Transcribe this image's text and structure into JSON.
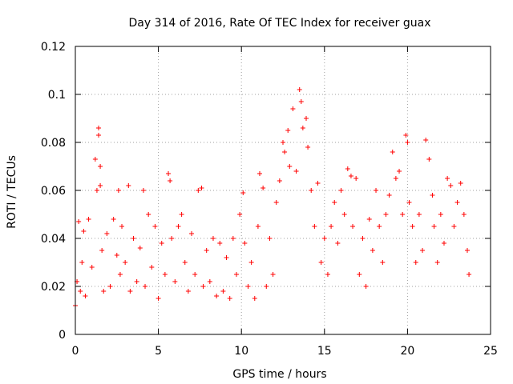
{
  "chart_data": {
    "type": "scatter",
    "title": "Day 314 of 2016, Rate Of TEC Index for receiver guax",
    "xlabel": "GPS time / hours",
    "ylabel": "ROTI / TECUs",
    "xlim": [
      0,
      25
    ],
    "ylim": [
      0,
      0.12
    ],
    "x_ticks": [
      0,
      5,
      10,
      15,
      20,
      25
    ],
    "x_tick_labels": [
      "0",
      "5",
      "10",
      "15",
      "20",
      "25"
    ],
    "y_ticks": [
      0,
      0.02,
      0.04,
      0.06,
      0.08,
      0.1,
      0.12
    ],
    "y_tick_labels": [
      "0",
      "0.02",
      "0.04",
      "0.06",
      "0.08",
      "0.1",
      "0.12"
    ],
    "grid": true,
    "legend": "none",
    "marker": "plus",
    "color": "#ff0000",
    "series": [
      {
        "x": [
          0.0,
          0.1,
          0.2,
          0.3,
          0.4,
          0.5,
          0.6,
          0.8,
          1.0,
          1.2,
          1.3,
          1.4,
          1.4,
          1.5,
          1.5,
          1.6,
          1.7,
          1.9,
          2.1,
          2.3,
          2.5,
          2.6,
          2.7,
          2.8,
          3.0,
          3.2,
          3.3,
          3.5,
          3.7,
          3.9,
          4.1,
          4.2,
          4.4,
          4.6,
          4.8,
          5.0,
          5.2,
          5.4,
          5.6,
          5.7,
          5.8,
          6.0,
          6.2,
          6.4,
          6.6,
          6.8,
          7.0,
          7.2,
          7.4,
          7.6,
          7.7,
          7.9,
          8.1,
          8.3,
          8.5,
          8.7,
          8.9,
          9.1,
          9.3,
          9.5,
          9.7,
          9.9,
          10.1,
          10.2,
          10.4,
          10.6,
          10.8,
          11.0,
          11.1,
          11.3,
          11.5,
          11.7,
          11.9,
          12.1,
          12.3,
          12.5,
          12.6,
          12.8,
          12.9,
          13.1,
          13.3,
          13.5,
          13.6,
          13.7,
          13.9,
          14.0,
          14.2,
          14.4,
          14.6,
          14.8,
          15.0,
          15.2,
          15.4,
          15.6,
          15.8,
          16.0,
          16.2,
          16.4,
          16.6,
          16.7,
          16.9,
          17.1,
          17.3,
          17.5,
          17.7,
          17.9,
          18.1,
          18.3,
          18.5,
          18.7,
          18.9,
          19.1,
          19.3,
          19.5,
          19.7,
          19.9,
          20.0,
          20.1,
          20.3,
          20.5,
          20.7,
          20.9,
          21.1,
          21.3,
          21.5,
          21.6,
          21.8,
          22.0,
          22.2,
          22.4,
          22.6,
          22.8,
          23.0,
          23.2,
          23.4,
          23.6,
          23.7
        ],
        "y": [
          0.012,
          0.022,
          0.047,
          0.018,
          0.03,
          0.043,
          0.016,
          0.048,
          0.028,
          0.073,
          0.06,
          0.086,
          0.083,
          0.07,
          0.062,
          0.035,
          0.018,
          0.042,
          0.02,
          0.048,
          0.033,
          0.06,
          0.025,
          0.045,
          0.03,
          0.062,
          0.018,
          0.04,
          0.022,
          0.036,
          0.06,
          0.02,
          0.05,
          0.028,
          0.045,
          0.015,
          0.038,
          0.025,
          0.067,
          0.064,
          0.04,
          0.022,
          0.045,
          0.05,
          0.03,
          0.018,
          0.042,
          0.025,
          0.06,
          0.061,
          0.02,
          0.035,
          0.022,
          0.04,
          0.016,
          0.038,
          0.018,
          0.032,
          0.015,
          0.04,
          0.025,
          0.05,
          0.059,
          0.038,
          0.02,
          0.03,
          0.015,
          0.045,
          0.067,
          0.061,
          0.02,
          0.04,
          0.025,
          0.055,
          0.064,
          0.08,
          0.076,
          0.085,
          0.07,
          0.094,
          0.068,
          0.102,
          0.097,
          0.086,
          0.09,
          0.078,
          0.06,
          0.045,
          0.063,
          0.03,
          0.04,
          0.025,
          0.045,
          0.055,
          0.038,
          0.06,
          0.05,
          0.069,
          0.066,
          0.045,
          0.065,
          0.025,
          0.04,
          0.02,
          0.048,
          0.035,
          0.06,
          0.045,
          0.03,
          0.05,
          0.058,
          0.076,
          0.065,
          0.068,
          0.05,
          0.083,
          0.08,
          0.055,
          0.045,
          0.03,
          0.05,
          0.035,
          0.081,
          0.073,
          0.058,
          0.045,
          0.03,
          0.05,
          0.038,
          0.065,
          0.062,
          0.045,
          0.055,
          0.063,
          0.05,
          0.035,
          0.025
        ]
      }
    ]
  }
}
